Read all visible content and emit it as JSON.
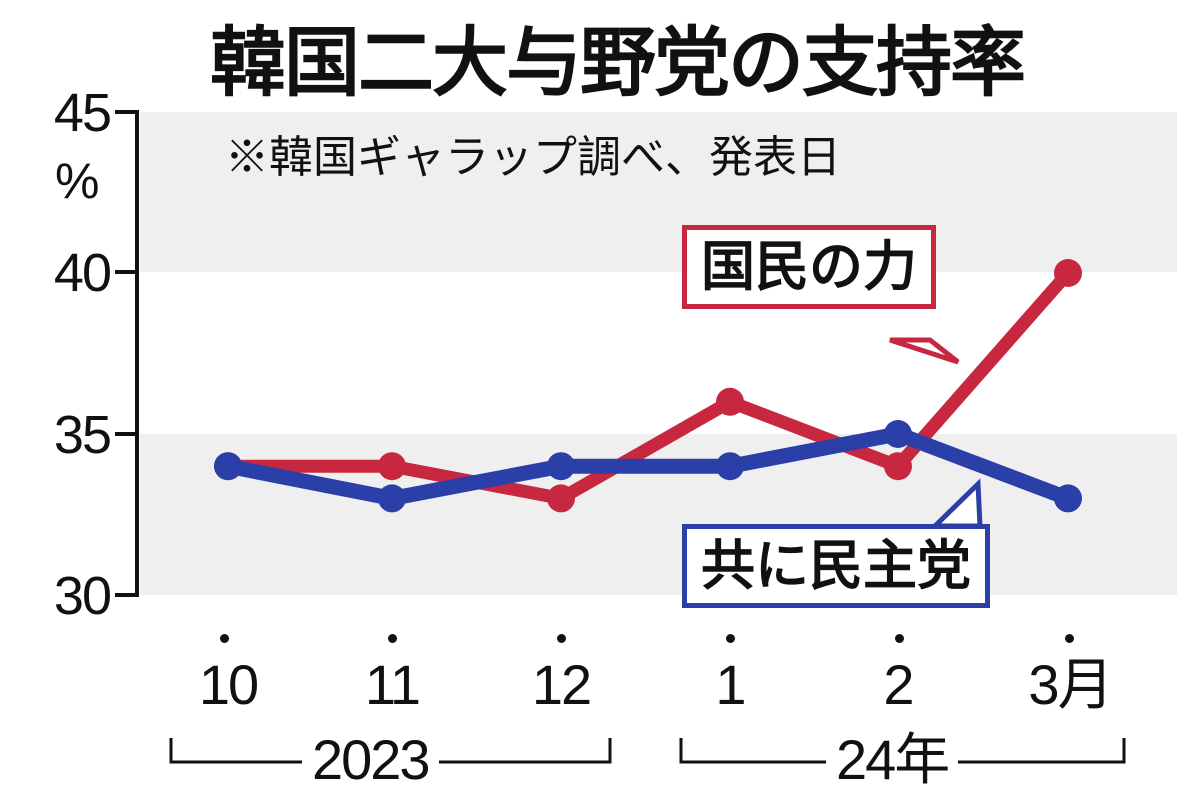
{
  "title": "韓国二大与野党の支持率",
  "note": "※韓国ギャラップ調べ、発表日",
  "y_axis": {
    "unit": "%",
    "ticks": [
      "45",
      "40",
      "35",
      "30"
    ]
  },
  "x_axis": {
    "ticks": [
      "10",
      "11",
      "12",
      "1",
      "2",
      "3月"
    ],
    "year_groups": [
      "2023",
      "24年"
    ]
  },
  "labels": {
    "ppp": "国民の力",
    "dpk": "共に民主党"
  },
  "colors": {
    "ppp": "#c8283f",
    "dpk": "#2a3fa8",
    "band": "#efefef"
  },
  "chart_data": {
    "type": "line",
    "title": "韓国二大与野党の支持率",
    "subtitle": "※韓国ギャラップ調べ、発表日",
    "xlabel": "",
    "ylabel": "%",
    "categories": [
      "2023-10",
      "2023-11",
      "2023-12",
      "2024-01",
      "2024-02",
      "2024-03"
    ],
    "category_labels": [
      "10",
      "11",
      "12",
      "1",
      "2",
      "3月"
    ],
    "series": [
      {
        "name": "国民の力",
        "color": "#c8283f",
        "values": [
          34,
          34,
          33,
          36,
          34,
          40
        ]
      },
      {
        "name": "共に民主党",
        "color": "#2a3fa8",
        "values": [
          34,
          33,
          34,
          34,
          35,
          33
        ]
      }
    ],
    "ylim": [
      30,
      45
    ],
    "yticks": [
      30,
      35,
      40,
      45
    ],
    "grid": "alternating horizontal bands (45-40, 35-30 shaded)",
    "legend": "callout labels attached to lines"
  }
}
